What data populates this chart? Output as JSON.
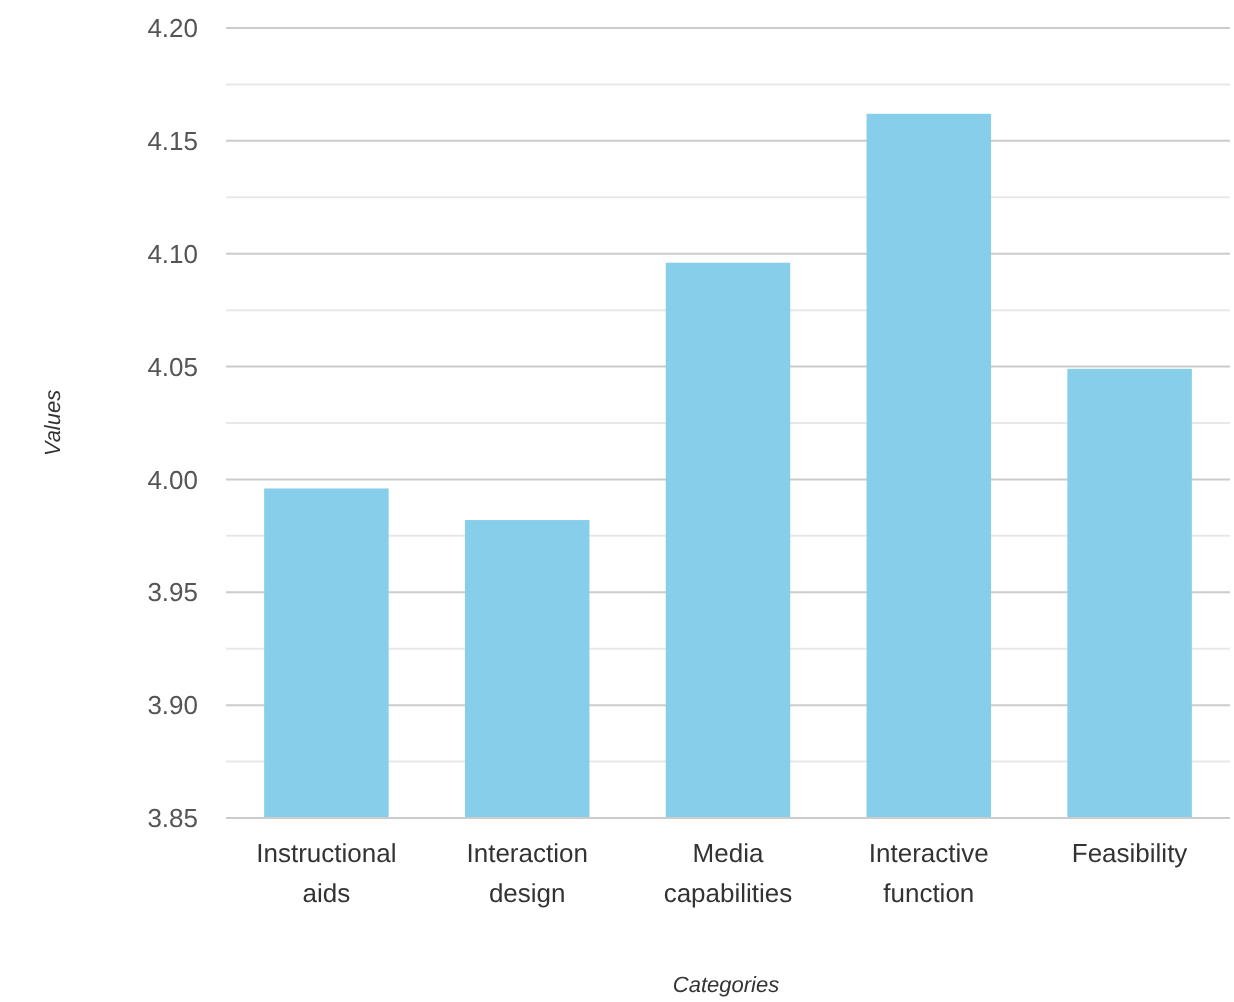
{
  "chart_data": {
    "type": "bar",
    "xlabel": "Categories",
    "ylabel": "Values",
    "categories": [
      "Instructional aids",
      "Interaction design",
      "Media capabilities",
      "Interactive function",
      "Feasibility"
    ],
    "values": [
      3.996,
      3.982,
      4.096,
      4.162,
      4.049
    ],
    "color": "#87ceeb",
    "ylim": [
      3.85,
      4.2
    ],
    "yticks": [
      3.85,
      {
        "value": 3.875,
        "label": null
      },
      {
        "value": 3.9,
        "label": "3.90"
      },
      {
        "value": 3.925,
        "label": null
      },
      3.95,
      {
        "value": 3.975,
        "label": null
      },
      {
        "value": 4,
        "label": "4.00"
      },
      {
        "value": 4.025,
        "label": null
      },
      4.05,
      {
        "value": 4.075,
        "label": null
      },
      {
        "value": 4.1,
        "label": "4.10"
      },
      {
        "value": 4.125,
        "label": null
      },
      4.15,
      {
        "value": 4.175,
        "label": null
      },
      {
        "value": 4.2,
        "label": "4.20"
      }
    ],
    "grid": true
  }
}
